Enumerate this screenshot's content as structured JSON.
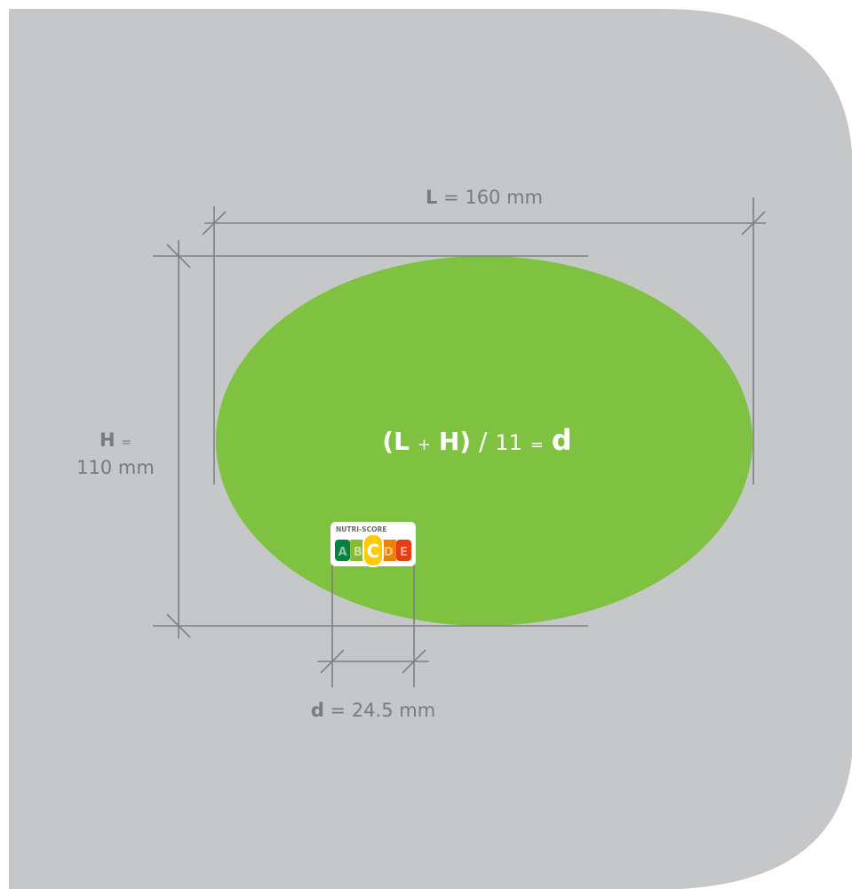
{
  "dimensions": {
    "length": {
      "symbol": "L",
      "value": "= 160 mm"
    },
    "height": {
      "symbol": "H",
      "equals": "=",
      "value": "110 mm"
    },
    "logo_size": {
      "symbol": "d",
      "value": "= 24.5 mm"
    }
  },
  "formula": {
    "open": "(L",
    "plus": "+",
    "close": "H)",
    "slash": "/",
    "divisor": "11",
    "equals": "=",
    "result": "d"
  },
  "logo": {
    "title": "NUTRI-SCORE",
    "grades": [
      "A",
      "B",
      "C",
      "D",
      "E"
    ]
  }
}
